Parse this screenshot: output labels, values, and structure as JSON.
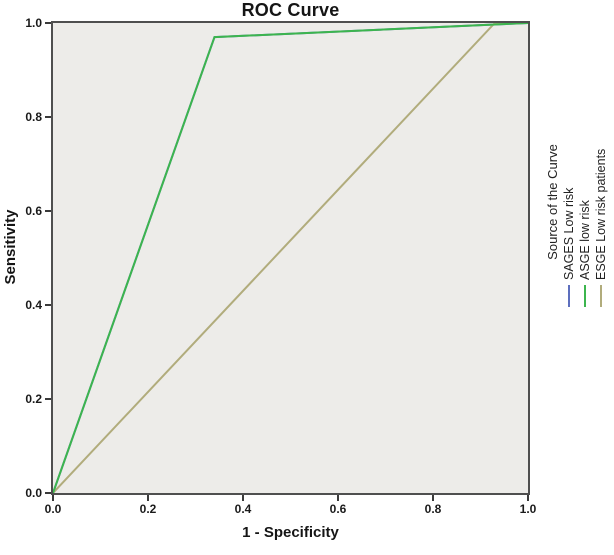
{
  "chart": {
    "title": "ROC Curve",
    "x_axis": {
      "label": "1 - Specificity",
      "ticks": [
        "0.0",
        "0.2",
        "0.4",
        "0.6",
        "0.8",
        "1.0"
      ]
    },
    "y_axis": {
      "label": "Sensitivity",
      "ticks": [
        "1.0",
        "0.8",
        "0.6",
        "0.4",
        "0.2",
        "0.0"
      ]
    },
    "plot_background": "#edece9",
    "frame_color": "#4f4f4f"
  },
  "legend": {
    "title": "Source of the Curve",
    "items": [
      {
        "label": "SAGES Low risk",
        "color": "#5d6fbe"
      },
      {
        "label": "ASGE low risk",
        "color": "#3cb54e"
      },
      {
        "label": "ESGE Low risk patients",
        "color": "#b1ac7c"
      }
    ]
  },
  "chart_data": {
    "type": "line",
    "title": "ROC Curve",
    "xlabel": "1 - Specificity",
    "ylabel": "Sensitivity",
    "xlim": [
      0,
      1
    ],
    "ylim": [
      0,
      1
    ],
    "grid": false,
    "legend_position": "right-rotated",
    "series": [
      {
        "name": "SAGES Low risk",
        "color": "#5d6fbe",
        "points": [
          [
            0,
            0
          ],
          [
            0.34,
            0.97
          ],
          [
            1,
            1
          ]
        ]
      },
      {
        "name": "ASGE low risk",
        "color": "#3cb54e",
        "points": [
          [
            0,
            0
          ],
          [
            0.34,
            0.97
          ],
          [
            1,
            1
          ]
        ]
      },
      {
        "name": "ESGE Low risk patients",
        "color": "#b1ac7c",
        "points": [
          [
            0,
            0
          ],
          [
            0.93,
            1
          ],
          [
            1,
            1
          ]
        ]
      }
    ],
    "draw_order": [
      0,
      2,
      1
    ]
  }
}
